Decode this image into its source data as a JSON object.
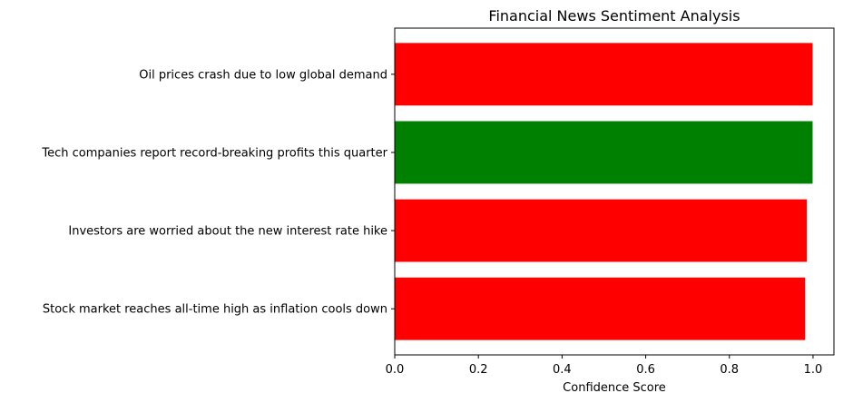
{
  "chart_data": {
    "type": "bar",
    "orientation": "horizontal",
    "title": "Financial News Sentiment Analysis",
    "xlabel": "Confidence Score",
    "ylabel": "",
    "categories": [
      "Stock market reaches all-time high as inflation cools down",
      "Investors are worried about the new interest rate hike",
      "Tech companies report record-breaking profits this quarter",
      "Oil prices crash due to low global demand"
    ],
    "values": [
      0.981,
      0.985,
      0.999,
      0.999
    ],
    "colors": [
      "#ff0000",
      "#ff0000",
      "#008000",
      "#ff0000"
    ],
    "xlim": [
      0,
      1.05
    ],
    "xticks": [
      "0.0",
      "0.2",
      "0.4",
      "0.6",
      "0.8",
      "1.0"
    ],
    "grid": false
  }
}
